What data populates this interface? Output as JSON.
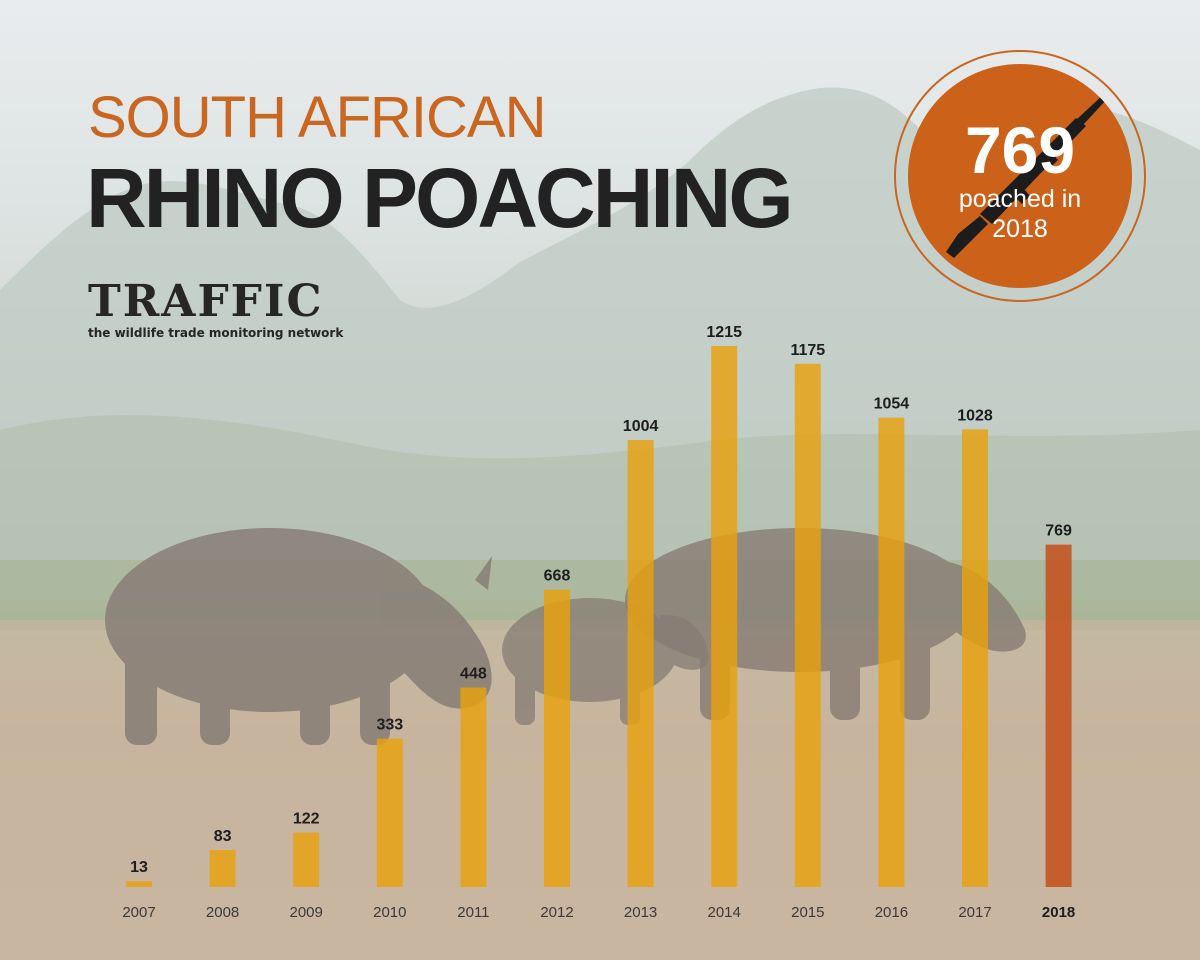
{
  "title": {
    "line1": "SOUTH AFRICAN",
    "line2": "RHINO POACHING"
  },
  "logo": {
    "name": "TRAFFIC",
    "tagline": "the wildlife trade monitoring network"
  },
  "badge": {
    "value": "769",
    "line1": "poached in",
    "line2": "2018",
    "icon": "rifle-icon"
  },
  "colors": {
    "bar": "#e8a10e",
    "highlight_bar": "#c44a14",
    "accent": "#cc6219",
    "text": "#222222"
  },
  "chart_data": {
    "type": "bar",
    "categories": [
      "2007",
      "2008",
      "2009",
      "2010",
      "2011",
      "2012",
      "2013",
      "2014",
      "2015",
      "2016",
      "2017",
      "2018"
    ],
    "values": [
      13,
      83,
      122,
      333,
      448,
      668,
      1004,
      1215,
      1175,
      1054,
      1028,
      769
    ],
    "highlight": "2018",
    "title": "RHINO POACHING",
    "xlabel": "",
    "ylabel": "",
    "ylim": [
      0,
      1215
    ],
    "grid": false,
    "legend": "none"
  }
}
